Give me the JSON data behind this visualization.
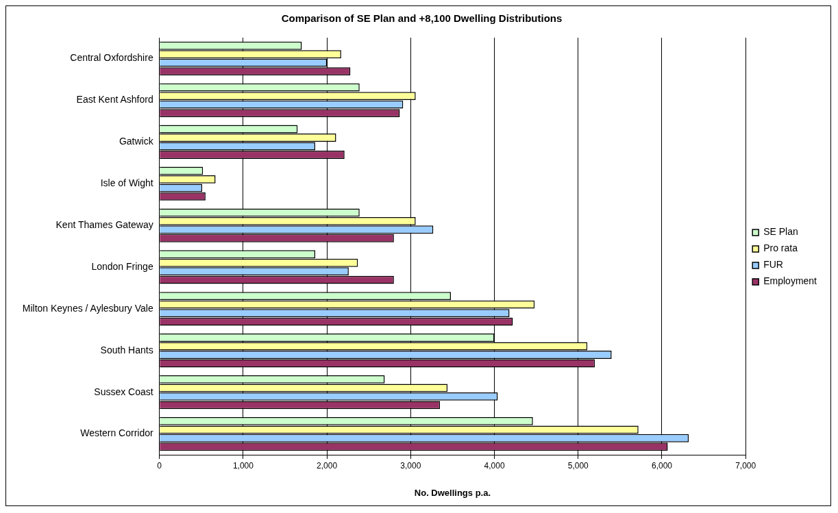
{
  "chart_data": {
    "type": "bar",
    "orientation": "horizontal",
    "title": "Comparison of SE Plan and +8,100 Dwelling Distributions",
    "xlabel": "No. Dwellings p.a.",
    "categories": [
      "Central Oxfordshire",
      "East Kent Ashford",
      "Gatwick",
      "Isle of Wight",
      "Kent Thames Gateway",
      "London Fringe",
      "Milton Keynes / Aylesbury Vale",
      "South Hants",
      "Sussex Coast",
      "Western Corridor"
    ],
    "series": [
      {
        "name": "SE Plan",
        "color": "#ccffcc",
        "values": [
          1700,
          2390,
          1650,
          520,
          2390,
          1860,
          3480,
          4000,
          2690,
          4460
        ]
      },
      {
        "name": "Pro rata",
        "color": "#ffff99",
        "values": [
          2170,
          3060,
          2110,
          670,
          3060,
          2370,
          4480,
          5110,
          3440,
          5720
        ]
      },
      {
        "name": "FUR",
        "color": "#99ccff",
        "values": [
          2000,
          2910,
          1860,
          510,
          3270,
          2260,
          4180,
          5400,
          4040,
          6320
        ]
      },
      {
        "name": "Employment",
        "color": "#993366",
        "values": [
          2280,
          2870,
          2210,
          550,
          2800,
          2800,
          4220,
          5200,
          3350,
          6070
        ]
      }
    ],
    "xlim": [
      0,
      7000
    ],
    "xticks": [
      {
        "value": 0,
        "label": "0"
      },
      {
        "value": 1000,
        "label": "1,000"
      },
      {
        "value": 2000,
        "label": "2,000"
      },
      {
        "value": 3000,
        "label": "3,000"
      },
      {
        "value": 4000,
        "label": "4,000"
      },
      {
        "value": 5000,
        "label": "5,000"
      },
      {
        "value": 6000,
        "label": "6,000"
      },
      {
        "value": 7000,
        "label": "7,000"
      }
    ],
    "grid": "x",
    "legend": "right"
  }
}
